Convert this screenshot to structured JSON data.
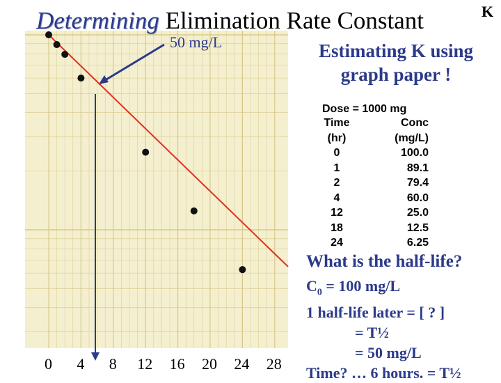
{
  "title": {
    "italic_part": "Determining",
    "rest": "Elimination Rate Constant"
  },
  "corner_letter": "K",
  "annotation_50": "50 mg/L",
  "estimate_heading": [
    "Estimating K using",
    "graph paper !"
  ],
  "dose": "Dose = 1000 mg",
  "table": {
    "headers": [
      [
        "Time",
        "Conc"
      ],
      [
        "(hr)",
        "(mg/L)"
      ]
    ],
    "rows": [
      [
        "0",
        "100.0"
      ],
      [
        "1",
        "89.1"
      ],
      [
        "2",
        "79.4"
      ],
      [
        "4",
        "60.0"
      ],
      [
        "12",
        "25.0"
      ],
      [
        "18",
        "12.5"
      ],
      [
        "24",
        "6.25"
      ]
    ]
  },
  "question": "What is the half-life?",
  "calc": {
    "c0": "C0 = 100 mg/L",
    "line1": "1 half-life later = [ ? ]",
    "line2": "= T½",
    "line3": "= 50 mg/L",
    "line4": "Time? … 6 hours. = T½"
  },
  "x_axis_ticks": [
    "0",
    "4",
    "8",
    "12",
    "16",
    "20",
    "24",
    "28"
  ],
  "colors": {
    "line": "#e03020",
    "arrow": "#2b3a8a",
    "heading": "#2b3a8a",
    "paper": "#f4efcf",
    "grid": "#d8c98a"
  },
  "chart_data": {
    "type": "scatter",
    "x": [
      0,
      1,
      2,
      4,
      12,
      18,
      24
    ],
    "y": [
      100.0,
      89.1,
      79.4,
      60.0,
      25.0,
      12.5,
      6.25
    ],
    "xlim": [
      0,
      28
    ],
    "y_scale": "log",
    "grid": true
  }
}
